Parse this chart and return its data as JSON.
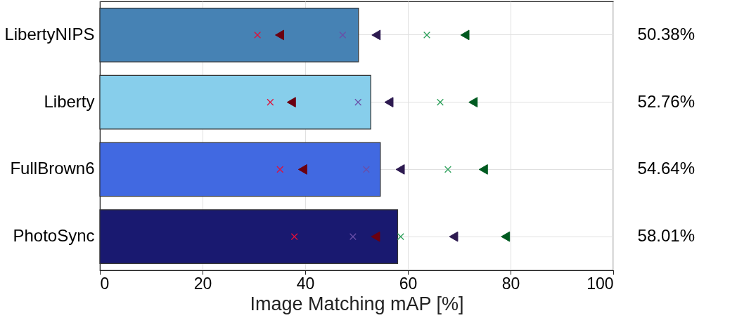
{
  "chart_data": {
    "type": "bar",
    "orientation": "horizontal",
    "xlabel": "Image Matching mAP [%]",
    "categories": [
      "LibertyNIPS",
      "Liberty",
      "FullBrown6",
      "PhotoSync"
    ],
    "xlim": [
      0,
      100
    ],
    "xticks": [
      0,
      20,
      40,
      60,
      80,
      100
    ],
    "grid": true,
    "series": [
      {
        "type": "bar",
        "colors": [
          "#4682b4",
          "#87ceeb",
          "#4169e1",
          "#191970"
        ],
        "values": [
          50.38,
          52.76,
          54.64,
          58.01
        ],
        "value_labels": [
          "50.38%",
          "52.76%",
          "54.64%",
          "58.01%"
        ]
      },
      {
        "type": "scatter",
        "marker": "cross",
        "color": "#e0103a",
        "values": [
          30.7,
          33.2,
          35.1,
          37.9
        ]
      },
      {
        "type": "scatter",
        "marker": "triangle",
        "color": "#6b0010",
        "values": [
          35.0,
          37.3,
          39.5,
          53.7
        ]
      },
      {
        "type": "scatter",
        "marker": "cross",
        "color": "#6a4fa8",
        "values": [
          47.3,
          50.3,
          51.9,
          49.3
        ]
      },
      {
        "type": "scatter",
        "marker": "triangle",
        "color": "#2d1a50",
        "values": [
          53.8,
          56.3,
          58.5,
          68.9
        ]
      },
      {
        "type": "scatter",
        "marker": "cross",
        "color": "#2ca05a",
        "values": [
          63.7,
          66.3,
          67.8,
          58.6
        ]
      },
      {
        "type": "scatter",
        "marker": "triangle",
        "color": "#005a20",
        "values": [
          71.1,
          72.7,
          74.7,
          79.0
        ]
      }
    ]
  }
}
